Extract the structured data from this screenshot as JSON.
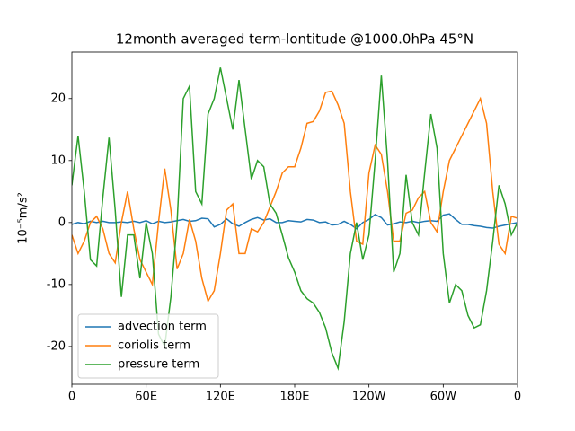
{
  "chart_data": {
    "type": "line",
    "title": "12month averaged term-lontitude @1000.0hPa 45°N",
    "y_label": "10⁻⁵m/s²",
    "x": [
      0,
      5,
      10,
      15,
      20,
      25,
      30,
      35,
      40,
      45,
      50,
      55,
      60,
      65,
      70,
      75,
      80,
      85,
      90,
      95,
      100,
      105,
      110,
      115,
      120,
      125,
      130,
      135,
      140,
      145,
      150,
      155,
      160,
      165,
      170,
      175,
      180,
      185,
      190,
      195,
      200,
      205,
      210,
      215,
      220,
      225,
      230,
      235,
      240,
      245,
      250,
      255,
      260,
      265,
      270,
      275,
      280,
      285,
      290,
      295,
      300,
      305,
      310,
      315,
      320,
      325,
      330,
      335,
      340,
      345,
      350,
      355,
      360
    ],
    "series": [
      {
        "name": "advection term",
        "color": "#1f77b4",
        "values": [
          -0.3,
          0,
          -0.2,
          0.2,
          0,
          0.2,
          0,
          0,
          0.1,
          0,
          0.2,
          0,
          0.3,
          -0.2,
          0.2,
          0,
          0.1,
          0.3,
          0.5,
          0.2,
          0.3,
          0.7,
          0.6,
          -0.7,
          -0.3,
          0.6,
          -0.2,
          -0.6,
          0,
          0.5,
          0.8,
          0.4,
          0.6,
          0,
          0,
          0.3,
          0.2,
          0.1,
          0.5,
          0.4,
          0,
          0.1,
          -0.4,
          -0.3,
          0.2,
          -0.3,
          -1,
          0,
          0.5,
          1.3,
          0.8,
          -0.4,
          -0.2,
          0.1,
          0,
          0.2,
          0,
          0.2,
          0.3,
          0.2,
          1.2,
          1.4,
          0.5,
          -0.3,
          -0.3,
          -0.5,
          -0.6,
          -0.8,
          -0.9,
          -0.6,
          -0.4,
          -0.2,
          0
        ]
      },
      {
        "name": "coriolis term",
        "color": "#ff7f0e",
        "values": [
          -2,
          -5,
          -3,
          0,
          1,
          -1,
          -5,
          -6.5,
          0,
          5,
          -1,
          -6,
          -8,
          -10,
          0,
          8.7,
          2,
          -7.5,
          -5,
          0.5,
          -3,
          -9,
          -12.7,
          -11,
          -5,
          2,
          3,
          -5,
          -5,
          -1,
          -1.5,
          0,
          2.5,
          5,
          8,
          9,
          9,
          12,
          16,
          16.3,
          18,
          21,
          21.2,
          19,
          16,
          5,
          -3,
          -3.5,
          8,
          12.5,
          11,
          5,
          -3,
          -3,
          1.5,
          2,
          4,
          5,
          0,
          -1.5,
          5,
          10,
          12,
          14,
          16,
          18,
          20,
          16,
          5,
          -3.5,
          -5,
          1,
          0.7
        ]
      },
      {
        "name": "pressure term",
        "color": "#2ca02c",
        "values": [
          6,
          14,
          5,
          -6,
          -7,
          4,
          13.7,
          2,
          -12,
          -2,
          -2,
          -9,
          0,
          -5,
          -18,
          -20,
          -12,
          0,
          20,
          22,
          5,
          3,
          17.5,
          20,
          25,
          20,
          15,
          23,
          15,
          7,
          10,
          9,
          3,
          1.5,
          -2,
          -5.7,
          -8,
          -11,
          -12.3,
          -13,
          -14.5,
          -17,
          -21,
          -23.5,
          -16,
          -5,
          0,
          -6,
          -2,
          10,
          23.7,
          10,
          -8,
          -5,
          7.7,
          0,
          -2,
          8,
          17.5,
          12,
          -5,
          -13,
          -10,
          -11,
          -15,
          -17,
          -16.5,
          -11,
          -3,
          6,
          3,
          -2,
          0
        ]
      }
    ],
    "xlim": [
      0,
      360
    ],
    "xticks": [
      0,
      {
        "value": 60,
        "label": "60E"
      },
      {
        "value": 120,
        "label": "120E"
      },
      {
        "value": 180,
        "label": "180E"
      },
      {
        "value": 240,
        "label": "120W"
      },
      {
        "value": 300,
        "label": "60W"
      },
      {
        "value": 360,
        "label": "0"
      }
    ],
    "ylim": [
      -26.1,
      27.5
    ],
    "yticks": [
      -20,
      -10,
      0,
      10,
      20
    ],
    "legend": "lower left"
  }
}
